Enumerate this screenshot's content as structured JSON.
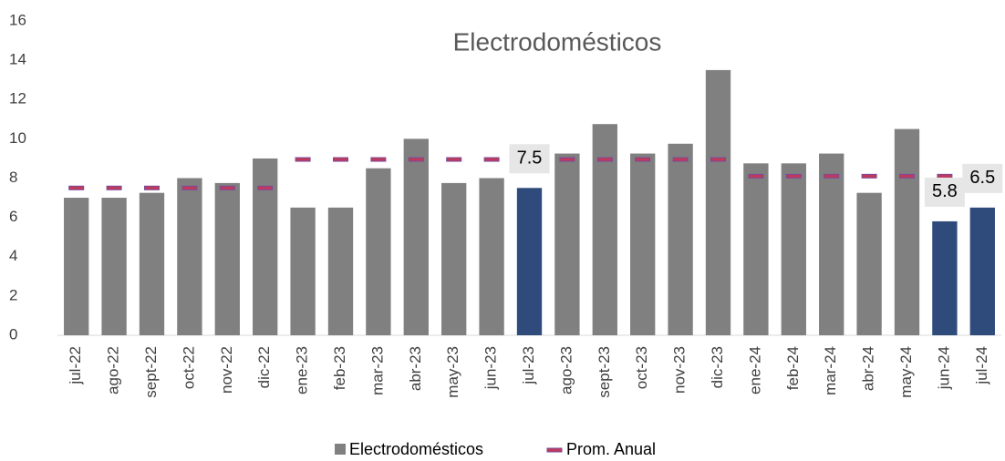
{
  "chart_data": {
    "type": "bar",
    "title": "Electrodomésticos",
    "categories": [
      "jul-22",
      "ago-22",
      "sept-22",
      "oct-22",
      "nov-22",
      "dic-22",
      "ene-23",
      "feb-23",
      "mar-23",
      "abr-23",
      "may-23",
      "jun-23",
      "jul-23",
      "ago-23",
      "sept-23",
      "oct-23",
      "nov-23",
      "dic-23",
      "ene-24",
      "feb-24",
      "mar-24",
      "abr-24",
      "may-24",
      "jun-24",
      "jul-24"
    ],
    "series": [
      {
        "name": "Electrodomésticos",
        "type": "bar",
        "color": "#808080",
        "colors": [
          "#808080",
          "#808080",
          "#808080",
          "#808080",
          "#808080",
          "#808080",
          "#808080",
          "#808080",
          "#808080",
          "#808080",
          "#808080",
          "#808080",
          "#2f4b7c",
          "#808080",
          "#808080",
          "#808080",
          "#808080",
          "#808080",
          "#808080",
          "#808080",
          "#808080",
          "#808080",
          "#808080",
          "#2f4b7c",
          "#2f4b7c"
        ],
        "values": [
          7,
          7,
          7.25,
          8,
          7.75,
          9,
          6.5,
          6.5,
          8.5,
          10,
          7.75,
          8,
          7.5,
          9.25,
          10.75,
          9.25,
          9.75,
          13.5,
          8.75,
          8.75,
          9.25,
          7.25,
          10.5,
          5.8,
          6.5
        ],
        "value_labels": [
          null,
          null,
          null,
          null,
          null,
          null,
          null,
          null,
          null,
          null,
          null,
          null,
          "7.5",
          null,
          null,
          null,
          null,
          null,
          null,
          null,
          null,
          null,
          null,
          "5.8",
          "6.5"
        ]
      },
      {
        "name": "Prom. Anual",
        "type": "dash",
        "color": "#c0395a",
        "values": [
          7.5,
          7.5,
          7.5,
          7.5,
          7.5,
          7.5,
          8.95,
          8.95,
          8.95,
          8.95,
          8.95,
          8.95,
          8.95,
          8.95,
          8.95,
          8.95,
          8.95,
          8.95,
          8.1,
          8.1,
          8.1,
          8.1,
          8.1,
          8.1,
          8.1
        ]
      }
    ],
    "ylim": [
      0,
      16
    ],
    "yticks": [
      0,
      2,
      4,
      6,
      8,
      10,
      12,
      14,
      16
    ],
    "grid": false
  }
}
